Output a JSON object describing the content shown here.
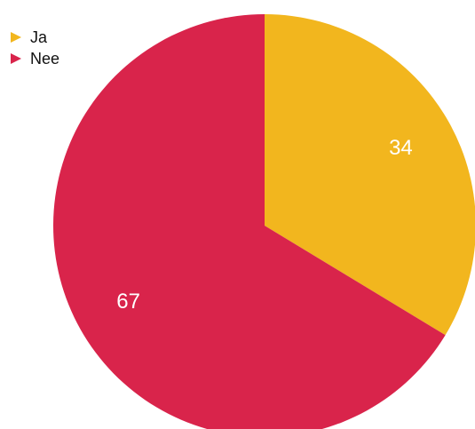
{
  "chart_data": {
    "type": "pie",
    "slices": [
      {
        "label": "Ja",
        "value": 34,
        "color": "#F2B61E"
      },
      {
        "label": "Nee",
        "value": 67,
        "color": "#D9244B"
      }
    ],
    "legend_position": "top-left"
  }
}
